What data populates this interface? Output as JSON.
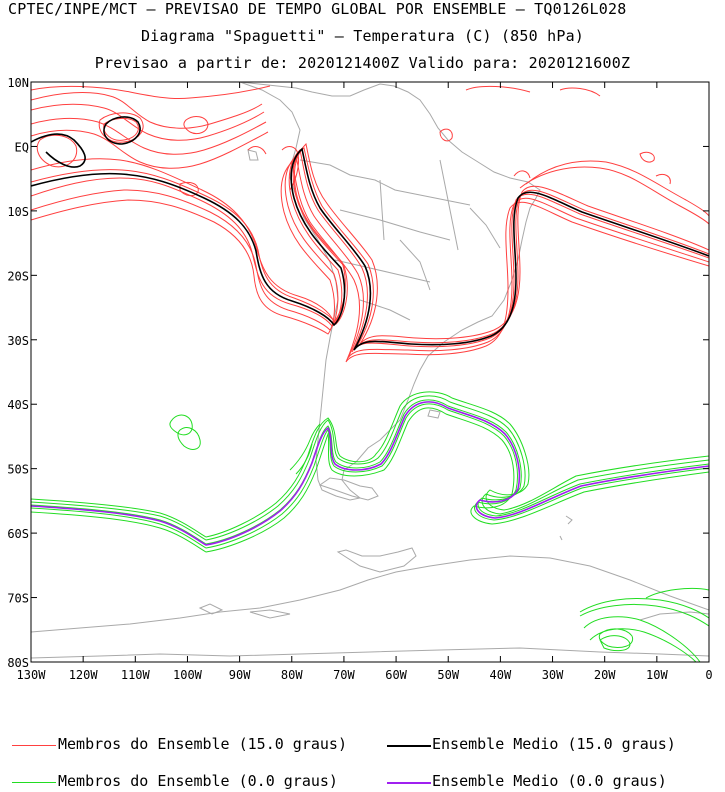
{
  "header": {
    "line1": "CPTEC/INPE/MCT – PREVISAO DE TEMPO GLOBAL POR ENSEMBLE – TQ0126L028",
    "line2": "Diagrama \"Spaguetti\" – Temperatura (C) (850 hPa)",
    "line3": "Previsao a partir de: 2020121400Z  Valido para: 2020121600Z"
  },
  "map": {
    "lat_labels": [
      "10N",
      "EQ",
      "10S",
      "20S",
      "30S",
      "40S",
      "50S",
      "60S",
      "70S",
      "80S"
    ],
    "lon_labels": [
      "130W",
      "120W",
      "110W",
      "100W",
      "90W",
      "80W",
      "70W",
      "60W",
      "50W",
      "40W",
      "30W",
      "20W",
      "10W",
      "0"
    ],
    "lat_range": [
      -80,
      10
    ],
    "lon_range": [
      -130,
      0
    ],
    "coastline_color": "#a9a9a9"
  },
  "legend": {
    "members_15": "Membros do Ensemble (15.0 graus)",
    "mean_15": "Ensemble Medio (15.0 graus)",
    "members_0": "Membros do Ensemble (0.0 graus)",
    "mean_0": "Ensemble Medio (0.0 graus)",
    "colors": {
      "members_15": "#ff4040",
      "mean_15": "#000000",
      "members_0": "#22dd22",
      "mean_0": "#a020f0"
    }
  }
}
